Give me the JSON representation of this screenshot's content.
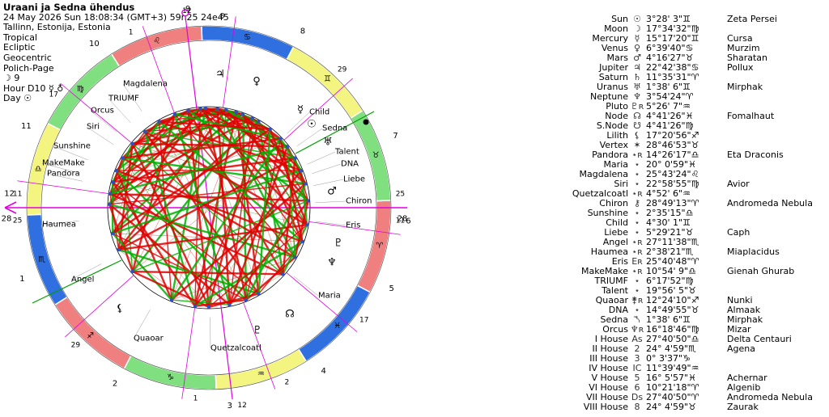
{
  "header": {
    "title": "Uraani ja Sedna ühendus",
    "datetime": "24 May 2026  Sun  18:08:34 (GMT+3) 59n25  24e45",
    "location": "Tallinn, Estonija, Estonia",
    "settings": [
      "Tropical",
      "Ecliptic",
      "Geocentric",
      "Polich-Page",
      "☽ 9",
      "Hour D10 ☿ ♁",
      "Day ☉"
    ]
  },
  "colors": {
    "fire": "#f08080",
    "earth": "#80e080",
    "air": "#f4f480",
    "water": "#2f6fe0",
    "aspect_red": "#e00000",
    "aspect_green": "#00b000",
    "axis_magenta": "#e000e0",
    "asc_line": "#8000ff"
  },
  "wheel": {
    "asc_label_left": "28",
    "asc_label_right": "28",
    "mc_label_top": "12",
    "mc_label_bottom": "12",
    "house_numbers": [
      "1",
      "2",
      "3",
      "4",
      "5",
      "6",
      "7",
      "8",
      "9",
      "10",
      "11",
      "12"
    ],
    "house_cusp_labels": [
      "25",
      "29",
      "1",
      "2",
      "17",
      "11",
      "25",
      "29",
      "8",
      "1",
      "17",
      "11"
    ],
    "sign_glyphs": [
      "♈",
      "♉",
      "♊",
      "♋",
      "♌",
      "♍",
      "♎",
      "♏",
      "♐",
      "♑",
      "♒",
      "♓"
    ],
    "outer_labels": [
      {
        "text": "Magdalena"
      },
      {
        "text": "TRIUMF"
      },
      {
        "text": "Orcus"
      },
      {
        "text": "Siri"
      },
      {
        "text": "Sunshine"
      },
      {
        "text": "MakeMake"
      },
      {
        "text": "Pandora"
      },
      {
        "text": "Haumea"
      },
      {
        "text": "Angel"
      },
      {
        "text": "Quaoar"
      },
      {
        "text": "Quetzalcoatl"
      },
      {
        "text": "Child"
      },
      {
        "text": "Sedna"
      },
      {
        "text": "Talent"
      },
      {
        "text": "DNA"
      },
      {
        "text": "Liebe"
      },
      {
        "text": "Chiron"
      },
      {
        "text": "Eris"
      },
      {
        "text": "Maria"
      }
    ],
    "wheel_glyphs": [
      "♃",
      "♀",
      "☉",
      "☿",
      "♅",
      "♂",
      "♇",
      "♆",
      "☊",
      "♇",
      "⚸"
    ]
  },
  "planets": [
    {
      "name": "Sun",
      "glyph": "☉",
      "pos": "3°28' 3\"♊",
      "star": "Zeta Persei"
    },
    {
      "name": "Moon",
      "glyph": "☽",
      "pos": "17°34'32\"♍",
      "star": ""
    },
    {
      "name": "Mercury",
      "glyph": "☿",
      "pos": "15°17'20\"♊",
      "star": "Cursa"
    },
    {
      "name": "Venus",
      "glyph": "♀",
      "pos": "6°39'40\"♋",
      "star": "Murzim"
    },
    {
      "name": "Mars",
      "glyph": "♂",
      "pos": "4°16'27\"♉",
      "star": "Sharatan"
    },
    {
      "name": "Jupiter",
      "glyph": "♃",
      "pos": "22°42'38\"♋",
      "star": "Pollux"
    },
    {
      "name": "Saturn",
      "glyph": "♄",
      "pos": "11°35'31\"♈",
      "star": ""
    },
    {
      "name": "Uranus",
      "glyph": "♅",
      "pos": "1°38' 6\"♊",
      "star": "Mirphak"
    },
    {
      "name": "Neptune",
      "glyph": "♆",
      "pos": "3°54'24\"♈",
      "star": ""
    },
    {
      "name": "Pluto",
      "glyph": "♇ʀ",
      "pos": "5°26' 7\"♒",
      "star": ""
    },
    {
      "name": "Node",
      "glyph": "☊",
      "pos": "4°41'26\"♓",
      "star": "Fomalhaut"
    },
    {
      "name": "S.Node",
      "glyph": "☋",
      "pos": "4°41'26\"♍",
      "star": ""
    },
    {
      "name": "Lilith",
      "glyph": "⚸",
      "pos": "17°20'56\"♐",
      "star": ""
    },
    {
      "name": "Vertex",
      "glyph": "✶",
      "pos": "28°46'53\"♉",
      "star": ""
    },
    {
      "name": "Pandora",
      "glyph": "⋆ʀ",
      "pos": "14°26'17\"♎",
      "star": "Eta Draconis"
    },
    {
      "name": "Maria",
      "glyph": "⋆",
      "pos": "20° 0'59\"♓",
      "star": ""
    },
    {
      "name": "Magdalena",
      "glyph": "⋆",
      "pos": "25°43'24\"♌",
      "star": ""
    },
    {
      "name": "Siri",
      "glyph": "⋆",
      "pos": "22°58'55\"♍",
      "star": "Avior"
    },
    {
      "name": "Quetzalcoatl",
      "glyph": "⋆ʀ",
      "pos": "4°52' 6\"♒",
      "star": ""
    },
    {
      "name": "Chiron",
      "glyph": "⚷",
      "pos": "28°49'13\"♈",
      "star": "Andromeda Nebula"
    },
    {
      "name": "Sunshine",
      "glyph": "⋆",
      "pos": "2°35'15\"♎",
      "star": ""
    },
    {
      "name": "Child",
      "glyph": "⋆",
      "pos": "4°30' 1\"♊",
      "star": ""
    },
    {
      "name": "Liebe",
      "glyph": "⋆",
      "pos": "5°29'21\"♉",
      "star": "Caph"
    },
    {
      "name": "Angel",
      "glyph": "⋆ʀ",
      "pos": "27°11'38\"♏",
      "star": ""
    },
    {
      "name": "Haumea",
      "glyph": "⋆ʀ",
      "pos": "2°38'21\"♏",
      "star": "Miaplacidus"
    },
    {
      "name": "Eris",
      "glyph": "Eʀ",
      "pos": "25°40'48\"♈",
      "star": ""
    },
    {
      "name": "MakeMake",
      "glyph": "⋆ʀ",
      "pos": "10°54' 9\"♎",
      "star": "Gienah Ghurab"
    },
    {
      "name": "TRIUMF",
      "glyph": "⋆",
      "pos": "6°17'52\"♍",
      "star": ""
    },
    {
      "name": "Talent",
      "glyph": "⋆",
      "pos": "19°56' 5\"♉",
      "star": ""
    },
    {
      "name": "Quaoar",
      "glyph": "⚵ʀ",
      "pos": "12°24'10\"♐",
      "star": "Nunki"
    },
    {
      "name": "DNA",
      "glyph": "⋆",
      "pos": "14°49'55\"♉",
      "star": "Almaak"
    },
    {
      "name": "Sedna",
      "glyph": "⯲",
      "pos": "1°38' 6\"♊",
      "star": "Mirphak"
    },
    {
      "name": "Orcus",
      "glyph": "♆ʀ",
      "pos": "16°18'46\"♍",
      "star": "Mizar"
    },
    {
      "name": "I House",
      "glyph": "As",
      "pos": "27°40'50\"♎",
      "star": "Delta Centauri"
    },
    {
      "name": "II House",
      "glyph": "2",
      "pos": "24° 4'59\"♏",
      "star": "Agena"
    },
    {
      "name": "III House",
      "glyph": "3",
      "pos": "0° 3'37\"♑",
      "star": ""
    },
    {
      "name": "IV House",
      "glyph": "IC",
      "pos": "11°39'49\"♒",
      "star": ""
    },
    {
      "name": "V House",
      "glyph": "5",
      "pos": "16° 5'57\"♓",
      "star": "Achernar"
    },
    {
      "name": "VI House",
      "glyph": "6",
      "pos": "10°21'18\"♈",
      "star": "Algenib"
    },
    {
      "name": "VII House",
      "glyph": "Ds",
      "pos": "27°40'50\"♈",
      "star": "Andromeda Nebula"
    },
    {
      "name": "VIII House",
      "glyph": "8",
      "pos": "24° 4'59\"♉",
      "star": "Zaurak"
    }
  ]
}
